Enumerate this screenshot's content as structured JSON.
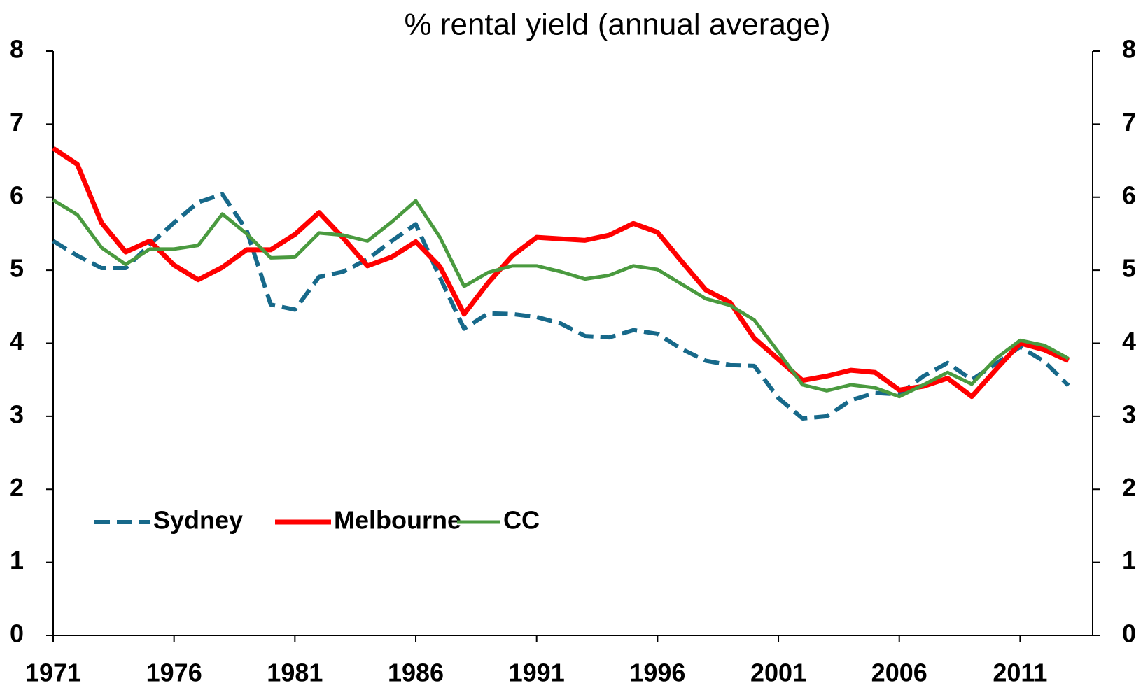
{
  "chart_data": {
    "type": "line",
    "title": "% rental yield (annual average)",
    "x": [
      1971,
      1972,
      1973,
      1974,
      1975,
      1976,
      1977,
      1978,
      1979,
      1980,
      1981,
      1982,
      1983,
      1984,
      1985,
      1986,
      1987,
      1988,
      1989,
      1990,
      1991,
      1992,
      1993,
      1994,
      1995,
      1996,
      1997,
      1998,
      1999,
      2000,
      2001,
      2002,
      2003,
      2004,
      2005,
      2006,
      2007,
      2008,
      2009,
      2010,
      2011,
      2012,
      2013
    ],
    "series": [
      {
        "name": "Sydney",
        "color": "#17698a",
        "style": "dashed",
        "values": [
          5.4,
          5.2,
          5.03,
          5.03,
          5.35,
          5.65,
          5.93,
          6.04,
          5.55,
          4.53,
          4.46,
          4.91,
          4.98,
          5.15,
          5.4,
          5.63,
          4.9,
          4.2,
          4.41,
          4.4,
          4.36,
          4.27,
          4.1,
          4.08,
          4.18,
          4.13,
          3.92,
          3.76,
          3.7,
          3.69,
          3.25,
          2.97,
          3.0,
          3.22,
          3.32,
          3.3,
          3.55,
          3.73,
          3.5,
          3.72,
          3.95,
          3.75,
          3.42
        ]
      },
      {
        "name": "Melbourne",
        "color": "#ff0000",
        "style": "solid",
        "values": [
          6.67,
          6.45,
          5.65,
          5.25,
          5.4,
          5.07,
          4.87,
          5.04,
          5.28,
          5.28,
          5.49,
          5.79,
          5.44,
          5.06,
          5.18,
          5.39,
          5.05,
          4.4,
          4.83,
          5.2,
          5.45,
          5.43,
          5.41,
          5.48,
          5.64,
          5.52,
          5.12,
          4.73,
          4.56,
          4.07,
          3.78,
          3.49,
          3.55,
          3.63,
          3.6,
          3.36,
          3.41,
          3.52,
          3.27,
          3.64,
          4.0,
          3.91,
          3.76
        ]
      },
      {
        "name": "CC",
        "color": "#4a9a3f",
        "style": "solid",
        "values": [
          5.96,
          5.76,
          5.31,
          5.08,
          5.29,
          5.29,
          5.34,
          5.77,
          5.5,
          5.17,
          5.18,
          5.51,
          5.48,
          5.4,
          5.66,
          5.95,
          5.45,
          4.78,
          4.97,
          5.06,
          5.06,
          4.98,
          4.88,
          4.93,
          5.06,
          5.01,
          4.81,
          4.61,
          4.52,
          4.32,
          3.88,
          3.43,
          3.35,
          3.43,
          3.39,
          3.27,
          3.43,
          3.6,
          3.44,
          3.79,
          4.04,
          3.97,
          3.79
        ]
      }
    ],
    "xlim": [
      1971,
      2014
    ],
    "xticks": [
      1971,
      1976,
      1981,
      1986,
      1991,
      1996,
      2001,
      2006,
      2011
    ],
    "ylim": [
      0,
      8
    ],
    "yticks": [
      0,
      1,
      2,
      3,
      4,
      5,
      6,
      7,
      8
    ],
    "y2lim": [
      0,
      8
    ],
    "y2ticks": [
      0,
      1,
      2,
      3,
      4,
      5,
      6,
      7,
      8
    ],
    "grid": false,
    "legend": "lower left"
  }
}
